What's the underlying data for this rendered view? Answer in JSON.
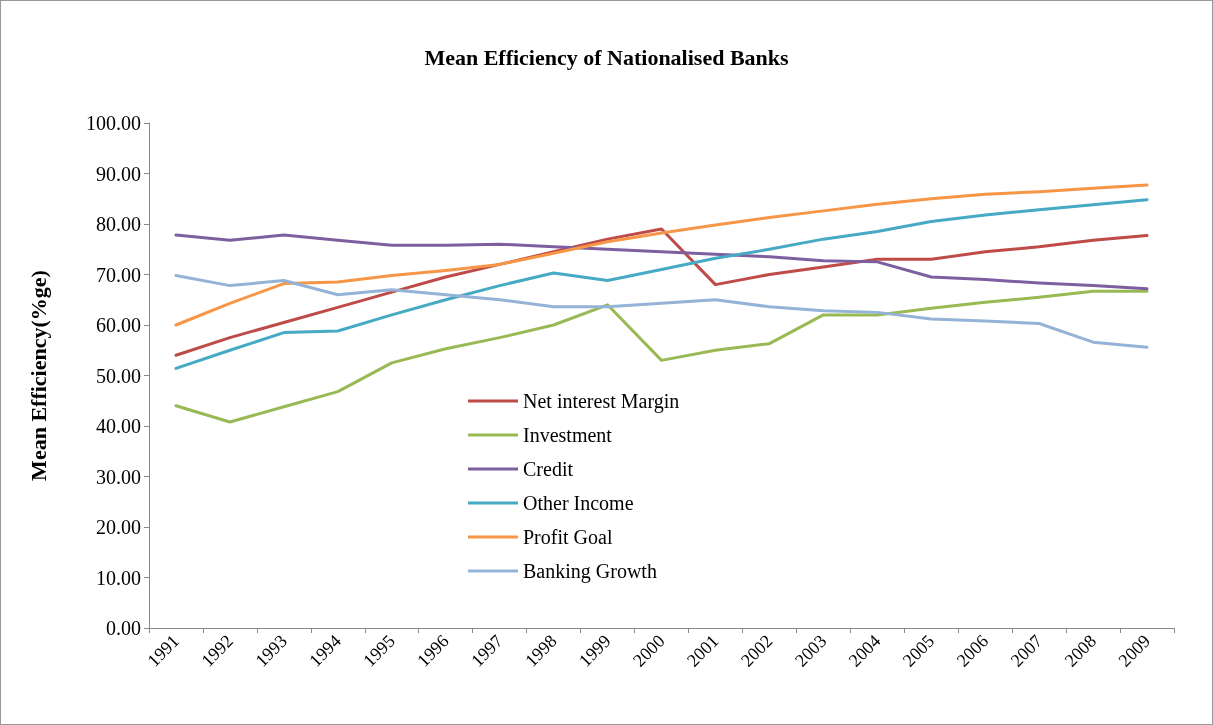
{
  "chart_data": {
    "type": "line",
    "title": "Mean Efficiency of Nationalised Banks",
    "ylabel": "Mean Efficiency(%ge)",
    "categories": [
      "1991",
      "1992",
      "1993",
      "1994",
      "1995",
      "1996",
      "1997",
      "1998",
      "1999",
      "2000",
      "2001",
      "2002",
      "2003",
      "2004",
      "2005",
      "2006",
      "2007",
      "2008",
      "2009"
    ],
    "series": [
      {
        "name": "Net interest Margin",
        "color": "#be4b48",
        "values": [
          54,
          57.5,
          60.5,
          63.5,
          66.5,
          69.5,
          72,
          74.5,
          77,
          79,
          68,
          70,
          71.5,
          73,
          73,
          74.5,
          75.5,
          76.8,
          77.7
        ]
      },
      {
        "name": "Investment",
        "color": "#98b954",
        "values": [
          44,
          40.8,
          43.8,
          46.8,
          52.5,
          55.3,
          57.5,
          60,
          64,
          53,
          55,
          56.3,
          62,
          62,
          63.3,
          64.5,
          65.5,
          66.7,
          66.7
        ]
      },
      {
        "name": "Credit",
        "color": "#7d5fa0",
        "values": [
          77.8,
          76.8,
          77.8,
          76.8,
          75.8,
          75.8,
          76,
          75.5,
          75,
          74.5,
          74,
          73.5,
          72.7,
          72.5,
          69.5,
          69,
          68.3,
          67.8,
          67.2
        ]
      },
      {
        "name": "Other Income",
        "color": "#46aac5",
        "values": [
          51.4,
          55,
          58.5,
          58.8,
          62,
          65,
          67.8,
          70.3,
          68.8,
          71,
          73.2,
          75,
          77,
          78.5,
          80.5,
          81.8,
          82.8,
          83.8,
          84.8
        ]
      },
      {
        "name": "Profit Goal",
        "color": "#f79646",
        "values": [
          60,
          64.3,
          68.2,
          68.5,
          69.8,
          70.8,
          72,
          74.2,
          76.5,
          78.2,
          79.8,
          81.3,
          82.6,
          83.9,
          85,
          85.9,
          86.4,
          87.1,
          87.7
        ]
      },
      {
        "name": "Banking Growth",
        "color": "#95b3d7",
        "values": [
          69.8,
          67.8,
          68.8,
          66,
          67,
          66,
          65,
          63.6,
          63.6,
          64.3,
          65,
          63.6,
          62.8,
          62.5,
          61.2,
          60.8,
          60.3,
          56.6,
          55.6
        ]
      }
    ],
    "ylim": [
      0,
      100
    ],
    "yticks": [
      {
        "value": 0,
        "label": "0.00"
      },
      {
        "value": 10,
        "label": "10.00"
      },
      {
        "value": 20,
        "label": "20.00"
      },
      {
        "value": 30,
        "label": "30.00"
      },
      {
        "value": 40,
        "label": "40.00"
      },
      {
        "value": 50,
        "label": "50.00"
      },
      {
        "value": 60,
        "label": "60.00"
      },
      {
        "value": 70,
        "label": "70.00"
      },
      {
        "value": 80,
        "label": "80.00"
      },
      {
        "value": 90,
        "label": "90.00"
      },
      {
        "value": 100,
        "label": "100.00"
      }
    ],
    "grid": false,
    "legend": "bottom",
    "marker": "none",
    "line_style": "solid"
  }
}
